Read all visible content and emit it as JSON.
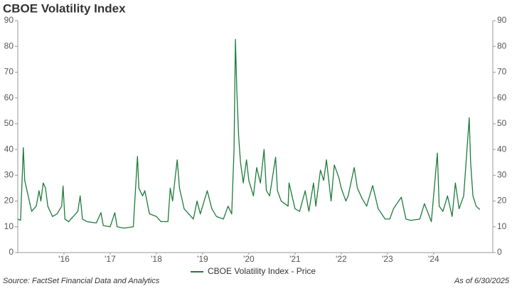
{
  "chart_data": {
    "type": "line",
    "title": "CBOE Volatility Index",
    "source": "Source: FactSet Financial Data and Analytics",
    "note": "As of 6/30/2025",
    "x": [
      2015.5,
      2015.56,
      2015.62,
      2015.65,
      2015.7,
      2015.8,
      2015.9,
      2015.96,
      2016.0,
      2016.05,
      2016.1,
      2016.15,
      2016.25,
      2016.35,
      2016.45,
      2016.48,
      2016.52,
      2016.6,
      2016.7,
      2016.8,
      2016.85,
      2016.9,
      2017.0,
      2017.2,
      2017.3,
      2017.35,
      2017.5,
      2017.6,
      2017.65,
      2017.8,
      2018.0,
      2018.09,
      2018.12,
      2018.2,
      2018.25,
      2018.35,
      2018.5,
      2018.6,
      2018.75,
      2018.8,
      2018.85,
      2018.95,
      2019.0,
      2019.1,
      2019.3,
      2019.38,
      2019.45,
      2019.6,
      2019.7,
      2019.8,
      2019.95,
      2020.05,
      2020.13,
      2020.18,
      2020.21,
      2020.24,
      2020.28,
      2020.32,
      2020.38,
      2020.45,
      2020.5,
      2020.6,
      2020.67,
      2020.75,
      2020.83,
      2020.88,
      2020.95,
      2021.08,
      2021.12,
      2021.2,
      2021.35,
      2021.37,
      2021.5,
      2021.6,
      2021.72,
      2021.8,
      2021.9,
      2021.95,
      2022.05,
      2022.12,
      2022.18,
      2022.28,
      2022.35,
      2022.45,
      2022.5,
      2022.6,
      2022.65,
      2022.78,
      2022.85,
      2022.95,
      2023.05,
      2023.18,
      2023.3,
      2023.45,
      2023.55,
      2023.63,
      2023.8,
      2023.9,
      2024.0,
      2024.2,
      2024.3,
      2024.45,
      2024.58,
      2024.62,
      2024.7,
      2024.8,
      2024.9,
      2024.97,
      2025.05,
      2025.15,
      2025.27,
      2025.3,
      2025.35,
      2025.42,
      2025.5
    ],
    "series": [
      {
        "name": "CBOE Volatility Index - Price",
        "color": "#1e7b3c",
        "values": [
          13,
          12.5,
          40.7,
          28,
          24,
          16,
          18,
          24,
          20,
          27,
          25,
          18,
          14,
          15,
          18,
          25.8,
          13,
          12,
          14,
          16,
          22,
          13,
          12,
          11.5,
          15.5,
          10.5,
          10,
          15.5,
          10,
          9.5,
          10,
          37.3,
          25,
          22,
          24,
          15,
          14,
          12,
          12,
          25,
          20,
          36,
          25,
          17,
          13,
          20,
          15,
          24,
          17,
          14,
          13,
          18,
          15,
          40,
          82.7,
          63,
          45,
          35,
          27,
          36,
          28,
          22,
          33,
          27,
          40,
          24,
          22,
          37,
          24,
          20,
          18,
          27,
          17,
          16,
          24,
          16,
          27,
          18,
          32,
          28,
          36,
          20,
          34,
          29,
          25,
          20,
          22,
          33,
          25,
          21,
          18,
          26,
          17,
          13,
          13,
          17,
          21.5,
          13,
          12.5,
          13,
          19,
          12,
          38.6,
          18,
          16,
          22,
          14,
          27,
          17,
          22,
          52.3,
          35,
          22,
          18,
          16.7
        ]
      }
    ],
    "xlim": [
      2015.5,
      2025.78
    ],
    "xticks": [
      {
        "value": 2016.5,
        "label": "'16"
      },
      {
        "value": 2017.5,
        "label": "'17"
      },
      {
        "value": 2018.5,
        "label": "'18"
      },
      {
        "value": 2019.5,
        "label": "'19"
      },
      {
        "value": 2020.5,
        "label": "'20"
      },
      {
        "value": 2021.5,
        "label": "'21"
      },
      {
        "value": 2022.5,
        "label": "'22"
      },
      {
        "value": 2023.5,
        "label": "'23"
      },
      {
        "value": 2024.5,
        "label": "'24"
      }
    ],
    "ylim": [
      0,
      90
    ],
    "yticks": [
      0,
      10,
      20,
      30,
      40,
      50,
      60,
      70,
      80,
      90
    ],
    "y2lim": [
      0,
      90
    ],
    "y2ticks": [
      0,
      10,
      20,
      30,
      40,
      50,
      60,
      70,
      80,
      90
    ],
    "grid": false,
    "legend": "bottom"
  }
}
